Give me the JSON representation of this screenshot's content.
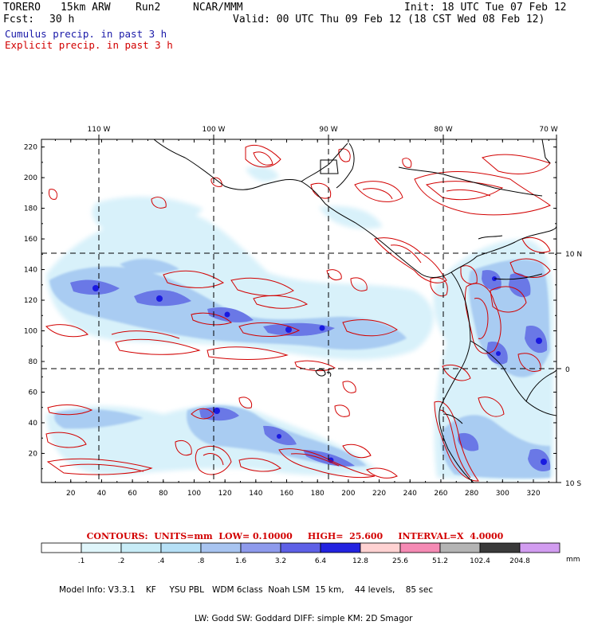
{
  "header": {
    "model_name": "TORERO",
    "resolution": "15km ARW",
    "run": "Run2",
    "org": "NCAR/MMM",
    "init": "Init: 18 UTC Tue 07 Feb 12",
    "fcst_label": "Fcst:",
    "fcst_value": "30 h",
    "valid": "Valid: 00 UTC Thu 09 Feb 12 (18 CST Wed 08 Feb 12)",
    "field1": "Cumulus precip. in past 3 h",
    "field1_color": "#1a1aa8",
    "field2": "Explicit precip. in past 3 h",
    "field2_color": "#d20000"
  },
  "map": {
    "lon_labels": [
      "110 W",
      "100 W",
      "90 W",
      "80 W",
      "70 W"
    ],
    "lat_labels": [
      "10 N",
      "0",
      "10 S"
    ],
    "x_ticks": [
      "20",
      "40",
      "60",
      "80",
      "100",
      "120",
      "140",
      "160",
      "180",
      "200",
      "220",
      "240",
      "260",
      "280",
      "300",
      "320"
    ],
    "y_ticks": [
      "20",
      "40",
      "60",
      "80",
      "100",
      "120",
      "140",
      "160",
      "180",
      "200",
      "220"
    ],
    "x_range": [
      1,
      335
    ],
    "y_range": [
      1,
      225
    ],
    "land_color": "#000000",
    "contour_color": "#d20000",
    "shade_colors": [
      "#d8f1fa",
      "#a9ccf2",
      "#6a78e6",
      "#1a1ae0"
    ]
  },
  "footer": {
    "contours_text": "CONTOURS:  UNITS=mm  LOW= 0.10000     HIGH=  25.600     INTERVAL=X  4.0000",
    "legend_labels": [
      ".1",
      ".2",
      ".4",
      ".8",
      "1.6",
      "3.2",
      "6.4",
      "12.8",
      "25.6",
      "51.2",
      "102.4",
      "204.8"
    ],
    "legend_colors": [
      "#ffffff",
      "#e0f6fb",
      "#c8ecf7",
      "#b6e0f6",
      "#a8c4f0",
      "#8e9aec",
      "#5e60e6",
      "#2323e0",
      "#ffd2d2",
      "#f58ab4",
      "#b4b4b4",
      "#3a3a3a",
      "#d29cf0"
    ],
    "legend_units": "mm",
    "model_info_1": "Model Info: V3.3.1    KF     YSU PBL   WDM 6class  Noah LSM  15 km,    44 levels,    85 sec",
    "model_info_2": "LW: Godd SW: Goddard DIFF: simple KM: 2D Smagor"
  }
}
